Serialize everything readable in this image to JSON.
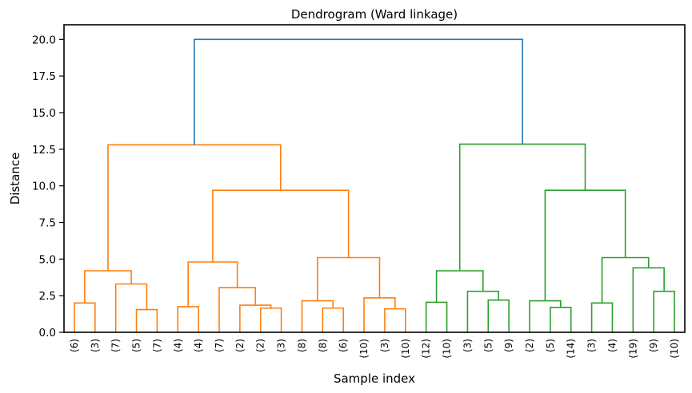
{
  "chart_data": {
    "type": "dendrogram",
    "title": "Dendrogram (Ward linkage)",
    "xlabel": "Sample index",
    "ylabel": "Distance",
    "ylim": [
      0,
      21
    ],
    "yticks": [
      0.0,
      2.5,
      5.0,
      7.5,
      10.0,
      12.5,
      15.0,
      17.5,
      20.0
    ],
    "ytick_labels": [
      "0.0",
      "2.5",
      "5.0",
      "7.5",
      "10.0",
      "12.5",
      "15.0",
      "17.5",
      "20.0"
    ],
    "grid": false,
    "colors": {
      "root": "#1f77b4",
      "cluster_1": "#ff7f0e",
      "cluster_2": "#2ca02c"
    },
    "leaf_labels": [
      "(6)",
      "(3)",
      "(7)",
      "(5)",
      "(7)",
      "(4)",
      "(4)",
      "(7)",
      "(2)",
      "(2)",
      "(3)",
      "(8)",
      "(8)",
      "(6)",
      "(10)",
      "(3)",
      "(10)",
      "(12)",
      "(10)",
      "(3)",
      "(5)",
      "(9)",
      "(2)",
      "(5)",
      "(14)",
      "(3)",
      "(4)",
      "(19)",
      "(9)",
      "(10)"
    ],
    "merges": [
      {
        "a": 0,
        "b": 1,
        "height": 2.0,
        "color": "#ff7f0e"
      },
      {
        "a": 3,
        "b": 4,
        "height": 1.55,
        "color": "#ff7f0e"
      },
      {
        "a": 2,
        "b": "m1",
        "height": 3.3,
        "color": "#ff7f0e"
      },
      {
        "a": "m0",
        "b": "m2",
        "height": 4.2,
        "color": "#ff7f0e"
      },
      {
        "a": 5,
        "b": 6,
        "height": 1.75,
        "color": "#ff7f0e"
      },
      {
        "a": 9,
        "b": 10,
        "height": 1.65,
        "color": "#ff7f0e"
      },
      {
        "a": 8,
        "b": "m5",
        "height": 1.85,
        "color": "#ff7f0e"
      },
      {
        "a": 7,
        "b": "m6",
        "height": 3.05,
        "color": "#ff7f0e"
      },
      {
        "a": "m4",
        "b": "m7",
        "height": 4.8,
        "color": "#ff7f0e"
      },
      {
        "a": 12,
        "b": 13,
        "height": 1.65,
        "color": "#ff7f0e"
      },
      {
        "a": 11,
        "b": "m9",
        "height": 2.15,
        "color": "#ff7f0e"
      },
      {
        "a": 15,
        "b": 16,
        "height": 1.6,
        "color": "#ff7f0e"
      },
      {
        "a": 14,
        "b": "m11",
        "height": 2.35,
        "color": "#ff7f0e"
      },
      {
        "a": "m10",
        "b": "m12",
        "height": 5.1,
        "color": "#ff7f0e"
      },
      {
        "a": "m8",
        "b": "m13",
        "height": 9.7,
        "color": "#ff7f0e"
      },
      {
        "a": "m3",
        "b": "m14",
        "height": 12.8,
        "color": "#ff7f0e"
      },
      {
        "a": 17,
        "b": 18,
        "height": 2.05,
        "color": "#2ca02c"
      },
      {
        "a": 20,
        "b": 21,
        "height": 2.2,
        "color": "#2ca02c"
      },
      {
        "a": 19,
        "b": "m17",
        "height": 2.8,
        "color": "#2ca02c"
      },
      {
        "a": "m16",
        "b": "m18",
        "height": 4.2,
        "color": "#2ca02c"
      },
      {
        "a": 23,
        "b": 24,
        "height": 1.7,
        "color": "#2ca02c"
      },
      {
        "a": 22,
        "b": "m20",
        "height": 2.15,
        "color": "#2ca02c"
      },
      {
        "a": 25,
        "b": 26,
        "height": 2.0,
        "color": "#2ca02c"
      },
      {
        "a": 28,
        "b": 29,
        "height": 2.8,
        "color": "#2ca02c"
      },
      {
        "a": 27,
        "b": "m23",
        "height": 4.4,
        "color": "#2ca02c"
      },
      {
        "a": "m22",
        "b": "m24",
        "height": 5.1,
        "color": "#2ca02c"
      },
      {
        "a": "m21",
        "b": "m25",
        "height": 9.7,
        "color": "#2ca02c"
      },
      {
        "a": "m19",
        "b": "m26",
        "height": 12.85,
        "color": "#2ca02c"
      },
      {
        "a": "m15",
        "b": "m27",
        "height": 20.0,
        "color": "#1f77b4"
      }
    ]
  }
}
